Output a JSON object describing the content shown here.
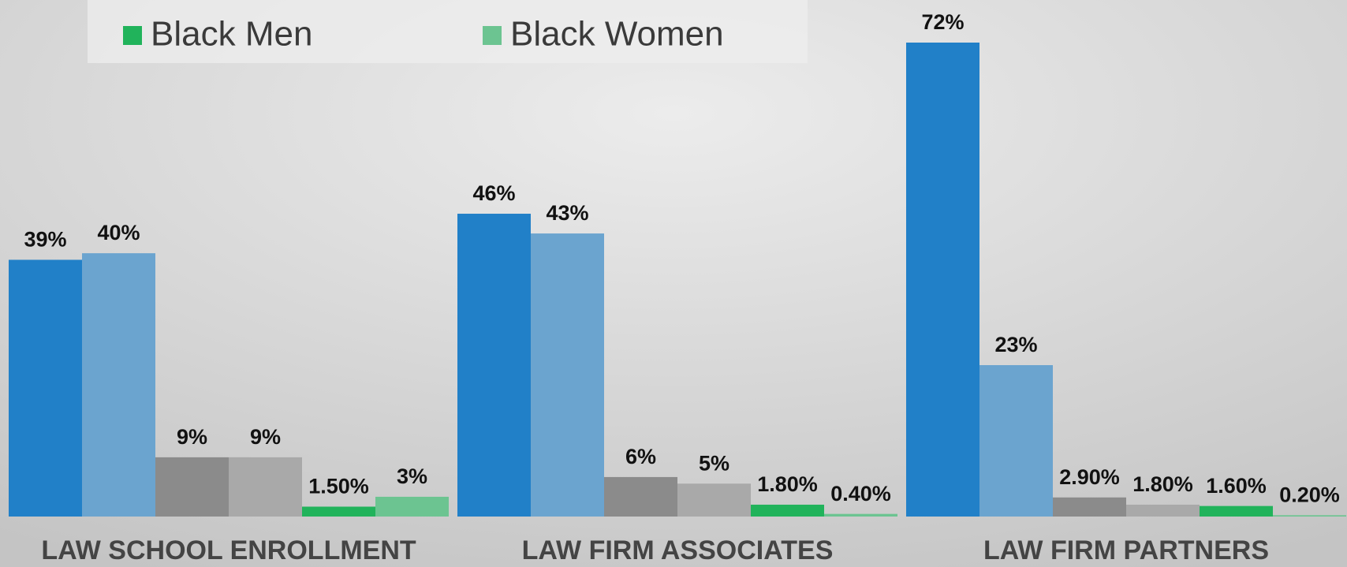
{
  "chart_data": {
    "type": "bar",
    "categories": [
      "LAW SCHOOL ENROLLMENT",
      "LAW FIRM ASSOCIATES",
      "LAW FIRM PARTNERS"
    ],
    "ylim": [
      0,
      72
    ],
    "series": [
      {
        "color": "#2180c8",
        "values": [
          39,
          46,
          72
        ],
        "value_labels": [
          "39%",
          "46%",
          "72%"
        ]
      },
      {
        "color": "#6ba4cf",
        "values": [
          40,
          43,
          23
        ],
        "value_labels": [
          "40%",
          "43%",
          "23%"
        ]
      },
      {
        "color": "#8b8b8b",
        "values": [
          9,
          6,
          2.9
        ],
        "value_labels": [
          "9%",
          "6%",
          "2.90%"
        ]
      },
      {
        "color": "#a9a9a9",
        "values": [
          9,
          5,
          1.8
        ],
        "value_labels": [
          "9%",
          "5%",
          "1.80%"
        ]
      },
      {
        "name": "Black Men",
        "color": "#21b35b",
        "values": [
          1.5,
          1.8,
          1.6
        ],
        "value_labels": [
          "1.50%",
          "1.80%",
          "1.60%"
        ]
      },
      {
        "name": "Black Women",
        "color": "#6cc491",
        "values": [
          3,
          0.4,
          0.2
        ],
        "value_labels": [
          "3%",
          "0.40%",
          "0.20%"
        ]
      }
    ]
  }
}
